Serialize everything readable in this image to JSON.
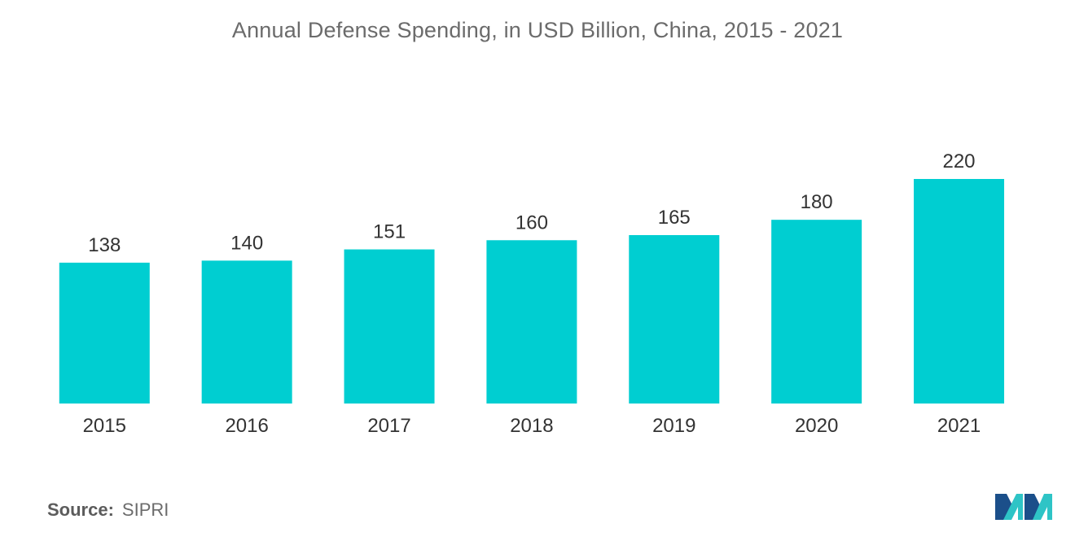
{
  "chart_data": {
    "type": "bar",
    "title": "Annual Defense Spending, in USD Billion, China, 2015 - 2021",
    "categories": [
      "2015",
      "2016",
      "2017",
      "2018",
      "2019",
      "2020",
      "2021"
    ],
    "values": [
      138,
      140,
      151,
      160,
      165,
      180,
      220
    ],
    "data_labels": [
      "138",
      "140",
      "151",
      "160",
      "165",
      "180",
      "220"
    ],
    "xlabel": "",
    "ylabel": "",
    "ylim": [
      0,
      220
    ],
    "grid": false,
    "legend": "none",
    "bar_color": "#00CED1"
  },
  "footer": {
    "source_label": "Source:",
    "source_value": "SIPRI"
  },
  "logo": {
    "icon": "mordor-intelligence-logo-icon",
    "colors": [
      "#1b4f8a",
      "#2ec4c6"
    ]
  }
}
